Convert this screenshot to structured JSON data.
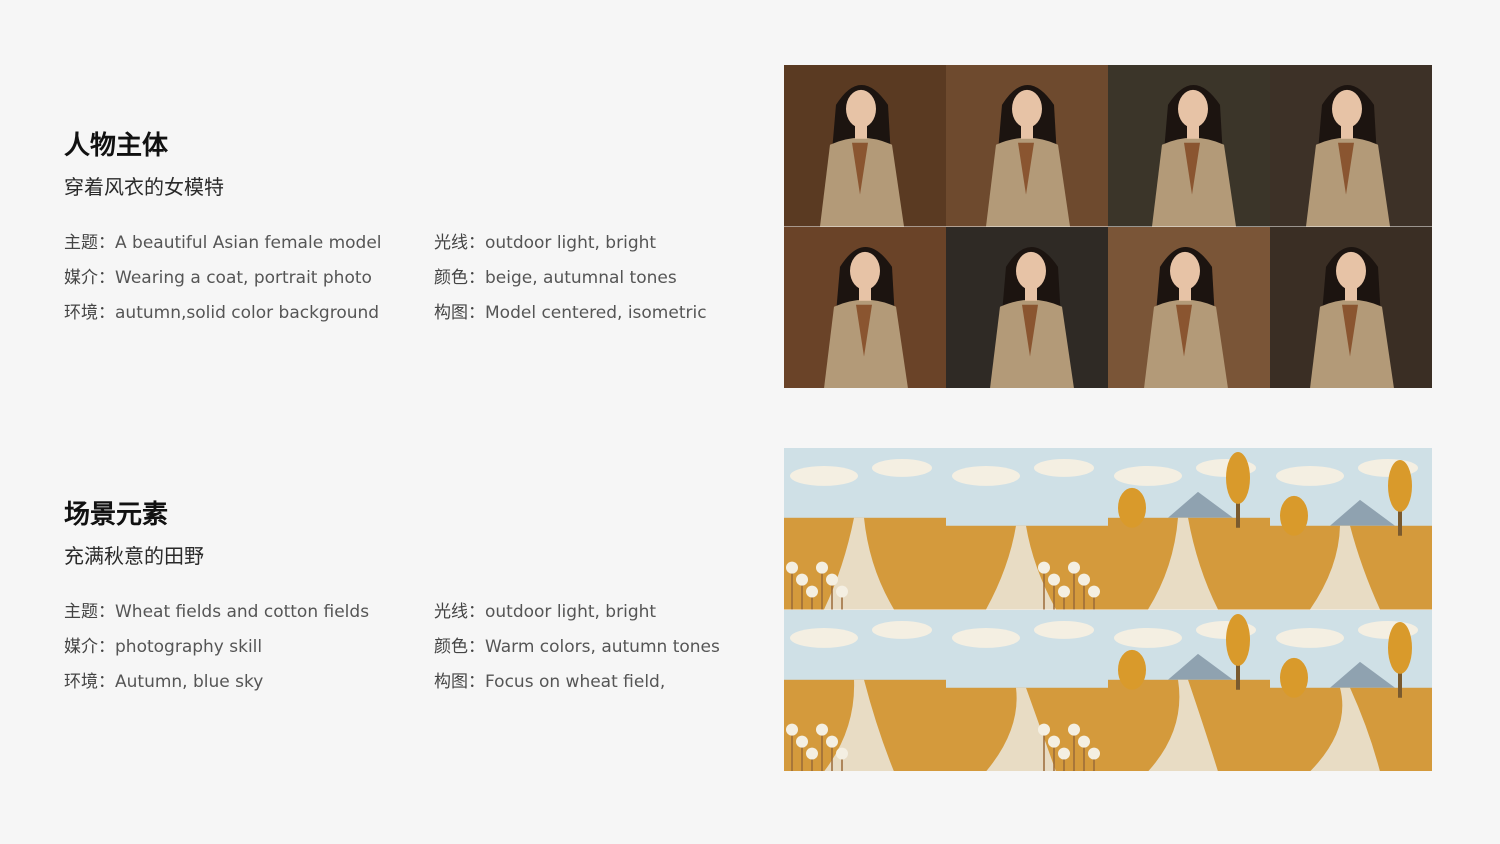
{
  "sections": [
    {
      "title": "人物主体",
      "subtitle": "穿着风衣的女模特",
      "props": [
        {
          "key": "主题：",
          "value": "A beautiful Asian female model"
        },
        {
          "key": "光线：",
          "value": "outdoor light, bright"
        },
        {
          "key": "媒介：",
          "value": "Wearing a coat, portrait photo"
        },
        {
          "key": "颜色：",
          "value": "beige, autumnal tones"
        },
        {
          "key": "环境：",
          "value": "autumn,solid color background"
        },
        {
          "key": "构图：",
          "value": "Model centered, isometric"
        }
      ]
    },
    {
      "title": "场景元素",
      "subtitle": "充满秋意的田野",
      "props": [
        {
          "key": "主题：",
          "value": "Wheat fields and cotton fields"
        },
        {
          "key": "光线：",
          "value": "outdoor light, bright"
        },
        {
          "key": "媒介：",
          "value": "photography skill"
        },
        {
          "key": "颜色：",
          "value": "Warm colors, autumn tones"
        },
        {
          "key": "环境：",
          "value": "Autumn, blue sky"
        },
        {
          "key": "构图：",
          "value": "Focus on wheat field,"
        }
      ]
    }
  ],
  "galleries": {
    "portraits": {
      "backgrounds": [
        "#5a3a22",
        "#6e4a2e",
        "#3b3529",
        "#3d3127",
        "#6a4328",
        "#2f2a25",
        "#7a5537",
        "#3a2e24"
      ],
      "coat_color": "#b39a78",
      "scarf_color": "#8a5530",
      "hair_color": "#1c1410",
      "skin_color": "#e7c3a6"
    },
    "landscapes": {
      "sky_color": "#cfe0e6",
      "cloud_color": "#f4efe2",
      "field_color": "#d49a3c",
      "road_color": "#e8dcc4",
      "mountain_color": "#8fa2b0",
      "tree_color": "#d99a2b"
    }
  }
}
